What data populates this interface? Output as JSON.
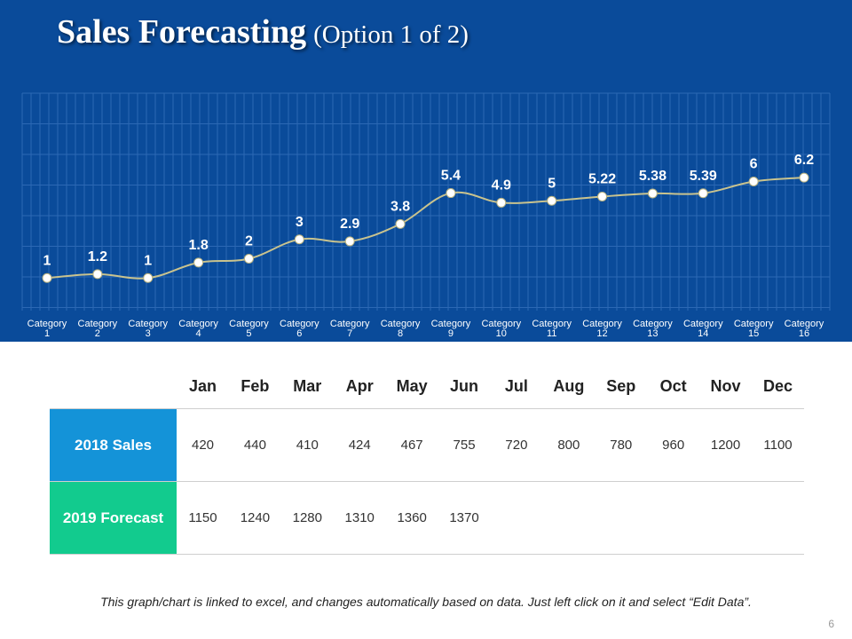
{
  "title": {
    "main": "Sales Forecasting",
    "sub": "(Option 1 of 2)"
  },
  "colors": {
    "band": "#0a4b9a",
    "line": "#c9c38e",
    "row_2018": "#1493d8",
    "row_2019": "#12cb8e"
  },
  "chart_data": {
    "type": "line",
    "categories": [
      [
        "Category",
        "1"
      ],
      [
        "Category",
        "2"
      ],
      [
        "Category",
        "3"
      ],
      [
        "Category",
        "4"
      ],
      [
        "Category",
        "5"
      ],
      [
        "Category",
        "6"
      ],
      [
        "Category",
        "7"
      ],
      [
        "Category",
        "8"
      ],
      [
        "Category",
        "9"
      ],
      [
        "Category",
        "10"
      ],
      [
        "Category",
        "11"
      ],
      [
        "Category",
        "12"
      ],
      [
        "Category",
        "13"
      ],
      [
        "Category",
        "14"
      ],
      [
        "Category",
        "15"
      ],
      [
        "Category",
        "16"
      ]
    ],
    "values": [
      1,
      1.2,
      1,
      1.8,
      2,
      3,
      2.9,
      3.8,
      5.4,
      4.9,
      5,
      5.22,
      5.38,
      5.39,
      6,
      6.2
    ],
    "title": "",
    "xlabel": "",
    "ylabel": "",
    "ylim": [
      0,
      7
    ],
    "grid": true,
    "smooth": true,
    "data_labels": true
  },
  "table": {
    "months": [
      "Jan",
      "Feb",
      "Mar",
      "Apr",
      "May",
      "Jun",
      "Jul",
      "Aug",
      "Sep",
      "Oct",
      "Nov",
      "Dec"
    ],
    "rows": [
      {
        "label": "2018 Sales",
        "values": [
          "420",
          "440",
          "410",
          "424",
          "467",
          "755",
          "720",
          "800",
          "780",
          "960",
          "1200",
          "1100"
        ]
      },
      {
        "label": "2019 Forecast",
        "values": [
          "1150",
          "1240",
          "1280",
          "1310",
          "1360",
          "1370",
          "",
          "",
          "",
          "",
          "",
          ""
        ]
      }
    ]
  },
  "footnote": "This graph/chart is linked to excel, and changes automatically based on data. Just left click on it and select “Edit Data”.",
  "page_number": "6"
}
